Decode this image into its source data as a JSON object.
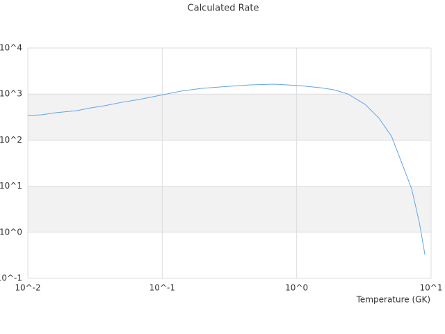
{
  "chart_data": {
    "type": "line",
    "title": "Calculated Rate",
    "x_label": "Temperature (GK)",
    "x_scale": "log",
    "y_scale": "log",
    "grid": true,
    "alternate_bands": true,
    "xlim": [
      0.01,
      10
    ],
    "ylim": [
      0.1,
      10000
    ],
    "xticks": [
      {
        "value": 0.01,
        "label": "10^-2"
      },
      {
        "value": 0.1,
        "label": "10^-1"
      },
      {
        "value": 1,
        "label": "10^0"
      },
      {
        "value": 10,
        "label": "10^1"
      }
    ],
    "yticks": [
      {
        "value": 0.1,
        "label": "10^-1"
      },
      {
        "value": 1,
        "label": "10^0"
      },
      {
        "value": 10,
        "label": "10^1"
      },
      {
        "value": 100,
        "label": "10^2"
      },
      {
        "value": 1000,
        "label": "10^3"
      },
      {
        "value": 10000,
        "label": "10^4"
      }
    ],
    "series": [
      {
        "color": "#5ea5e8",
        "x": [
          0.01,
          0.0127,
          0.0161,
          0.023,
          0.0292,
          0.0371,
          0.0499,
          0.0673,
          0.0962,
          0.1375,
          0.196,
          0.316,
          0.452,
          0.686,
          1.04,
          1.49,
          1.89,
          2.4,
          3.23,
          4.1,
          5.08,
          6.22,
          7.18,
          8.18,
          9.0
        ],
        "values": [
          343,
          355,
          394,
          436,
          500,
          557,
          662,
          762,
          940,
          1157,
          1330,
          1476,
          1585,
          1641,
          1528,
          1377,
          1241,
          1007,
          597,
          298,
          121,
          26.1,
          8.59,
          1.62,
          0.327
        ]
      }
    ]
  }
}
